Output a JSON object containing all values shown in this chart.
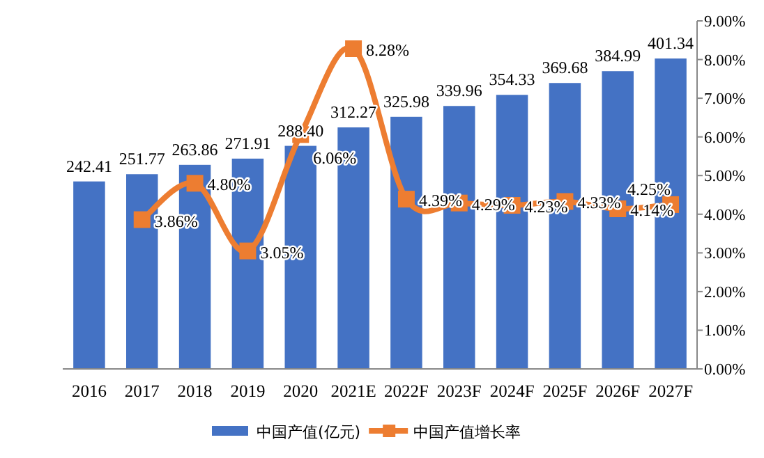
{
  "chart_data": {
    "type": "bar",
    "categories": [
      "2016",
      "2017",
      "2018",
      "2019",
      "2020",
      "2021E",
      "2022F",
      "2023F",
      "2024F",
      "2025F",
      "2026F",
      "2027F"
    ],
    "series": [
      {
        "name": "中国产值(亿元)",
        "color": "#4472c4",
        "values": [
          242.41,
          251.77,
          263.86,
          271.91,
          288.4,
          312.27,
          325.98,
          339.96,
          354.33,
          369.68,
          384.99,
          401.34
        ],
        "value_labels": [
          "242.41",
          "251.77",
          "263.86",
          "271.91",
          "288.40",
          "312.27",
          "325.98",
          "339.96",
          "354.33",
          "369.68",
          "384.99",
          "401.34"
        ]
      },
      {
        "name": "中国产值增长率",
        "type": "line",
        "axis": "y2",
        "color": "#ed7d31",
        "marker": "square",
        "values": [
          null,
          3.86,
          4.8,
          3.05,
          6.06,
          8.28,
          4.39,
          4.29,
          4.23,
          4.33,
          4.14,
          4.25
        ],
        "value_labels": [
          null,
          "3.86%",
          "4.80%",
          "3.05%",
          "6.06%",
          "8.28%",
          "4.39%",
          "4.29%",
          "4.23%",
          "4.33%",
          "4.14%",
          "4.25%"
        ]
      }
    ],
    "ylim": [
      0,
      450
    ],
    "y2lim": [
      0,
      9
    ],
    "y2ticks": [
      {
        "value": 0,
        "label": "0.00%"
      },
      {
        "value": 1,
        "label": "1.00%"
      },
      {
        "value": 2,
        "label": "2.00%"
      },
      {
        "value": 3,
        "label": "3.00%"
      },
      {
        "value": 4,
        "label": "4.00%"
      },
      {
        "value": 5,
        "label": "5.00%"
      },
      {
        "value": 6,
        "label": "6.00%"
      },
      {
        "value": 7,
        "label": "7.00%"
      },
      {
        "value": 8,
        "label": "8.00%"
      },
      {
        "value": 9,
        "label": "9.00%"
      }
    ],
    "tick_labels": [
      "x",
      "y2"
    ],
    "grid": false,
    "legend": "bottom"
  }
}
